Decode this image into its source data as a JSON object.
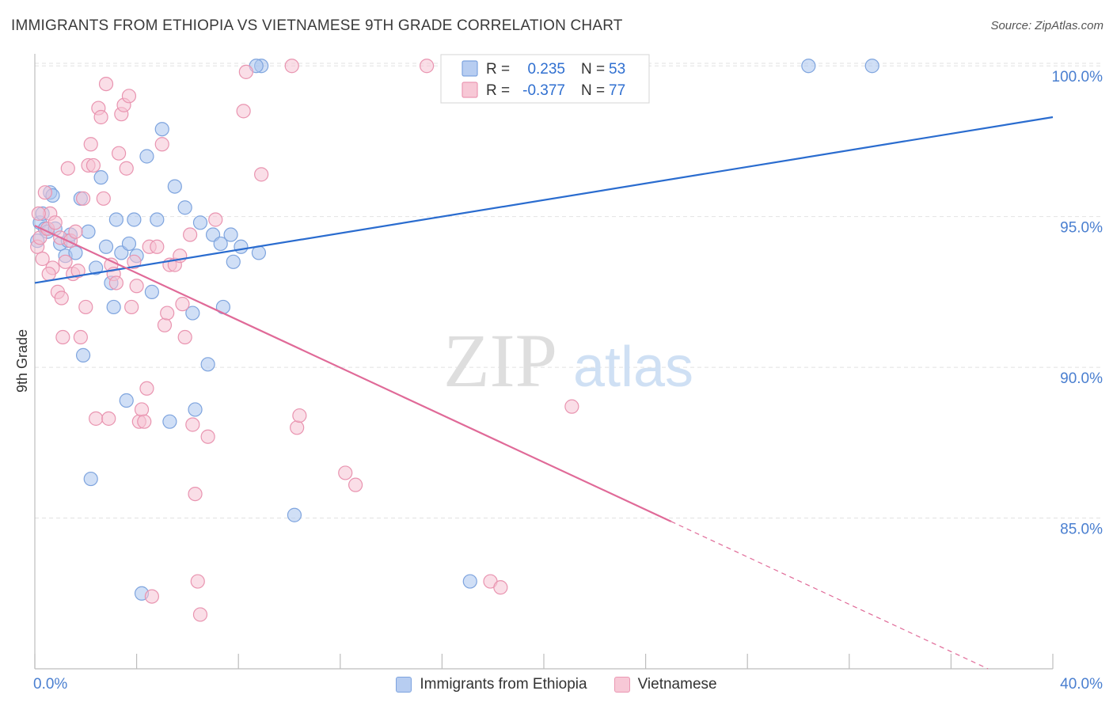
{
  "header": {
    "title": "IMMIGRANTS FROM ETHIOPIA VS VIETNAMESE 9TH GRADE CORRELATION CHART",
    "source": "Source: ZipAtlas.com"
  },
  "watermark": {
    "zip": "ZIP",
    "atlas": "atlas"
  },
  "colors": {
    "blue_fill": "#aac5ee",
    "blue_stroke": "#7ea4de",
    "blue_line": "#2a6ccf",
    "pink_fill": "#f6c3d3",
    "pink_stroke": "#e994b0",
    "pink_line": "#e06a98",
    "grid": "#e2e2e2",
    "axis_text": "#4a7fd0"
  },
  "chart_data": {
    "type": "scatter",
    "title": "IMMIGRANTS FROM ETHIOPIA VS VIETNAMESE 9TH GRADE CORRELATION CHART",
    "xlabel": "",
    "ylabel": "9th Grade",
    "xlim": [
      0,
      40
    ],
    "ylim": [
      80,
      100.4
    ],
    "x_tick_labels": [
      "0.0%",
      "40.0%"
    ],
    "y_ticks": [
      85,
      90,
      95,
      100
    ],
    "y_tick_labels": [
      "85.0%",
      "90.0%",
      "95.0%",
      "100.0%"
    ],
    "grid": true,
    "legend": [
      {
        "r_label": "R =",
        "r_value": "0.235",
        "n_label": "N =",
        "n_value": "53"
      },
      {
        "r_label": "R =",
        "r_value": "-0.377",
        "n_label": "N =",
        "n_value": "77"
      }
    ],
    "series": [
      {
        "name": "Immigrants from Ethiopia",
        "R": 0.235,
        "N": 53,
        "trend": {
          "x0": 0,
          "y0": 92.8,
          "x1": 40,
          "y1": 98.3,
          "dashed_from": null
        },
        "points": [
          [
            0.1,
            94.2
          ],
          [
            0.2,
            94.8
          ],
          [
            0.3,
            95.1
          ],
          [
            0.4,
            94.6
          ],
          [
            0.5,
            94.5
          ],
          [
            0.6,
            95.8
          ],
          [
            0.7,
            95.7
          ],
          [
            0.8,
            94.6
          ],
          [
            1.0,
            94.1
          ],
          [
            1.2,
            93.7
          ],
          [
            1.3,
            94.2
          ],
          [
            1.4,
            94.4
          ],
          [
            1.6,
            93.8
          ],
          [
            1.8,
            95.6
          ],
          [
            1.9,
            90.4
          ],
          [
            2.1,
            94.5
          ],
          [
            2.2,
            86.3
          ],
          [
            2.4,
            93.3
          ],
          [
            2.6,
            96.3
          ],
          [
            2.8,
            94.0
          ],
          [
            3.0,
            92.8
          ],
          [
            3.1,
            92.0
          ],
          [
            3.2,
            94.9
          ],
          [
            3.4,
            93.8
          ],
          [
            3.6,
            88.9
          ],
          [
            3.7,
            94.1
          ],
          [
            3.9,
            94.9
          ],
          [
            4.0,
            93.7
          ],
          [
            4.2,
            82.5
          ],
          [
            4.4,
            97.0
          ],
          [
            4.6,
            92.5
          ],
          [
            4.8,
            94.9
          ],
          [
            5.0,
            97.9
          ],
          [
            5.3,
            88.2
          ],
          [
            5.5,
            96.0
          ],
          [
            5.9,
            95.3
          ],
          [
            6.2,
            91.8
          ],
          [
            6.3,
            88.6
          ],
          [
            6.5,
            94.8
          ],
          [
            6.8,
            90.1
          ],
          [
            7.0,
            94.4
          ],
          [
            7.3,
            94.1
          ],
          [
            7.4,
            92.0
          ],
          [
            7.7,
            94.4
          ],
          [
            7.8,
            93.5
          ],
          [
            8.1,
            94.0
          ],
          [
            8.9,
            100.0
          ],
          [
            8.7,
            100.0
          ],
          [
            8.8,
            93.8
          ],
          [
            10.2,
            85.1
          ],
          [
            17.1,
            82.9
          ],
          [
            30.4,
            100.0
          ],
          [
            32.9,
            100.0
          ]
        ]
      },
      {
        "name": "Vietnamese",
        "R": -0.377,
        "N": 77,
        "trend": {
          "x0": 0,
          "y0": 94.7,
          "x1": 40,
          "y1": 79.0,
          "dashed_from": 25.0
        },
        "points": [
          [
            0.1,
            94.0
          ],
          [
            0.2,
            94.3
          ],
          [
            0.3,
            93.6
          ],
          [
            0.4,
            95.8
          ],
          [
            0.5,
            94.6
          ],
          [
            0.6,
            95.1
          ],
          [
            0.7,
            93.3
          ],
          [
            0.8,
            94.8
          ],
          [
            0.9,
            92.5
          ],
          [
            1.0,
            94.3
          ],
          [
            1.1,
            91.0
          ],
          [
            1.2,
            93.5
          ],
          [
            1.3,
            96.6
          ],
          [
            1.4,
            94.2
          ],
          [
            1.5,
            93.1
          ],
          [
            1.6,
            94.5
          ],
          [
            1.7,
            93.2
          ],
          [
            1.8,
            91.0
          ],
          [
            1.9,
            95.6
          ],
          [
            2.0,
            92.0
          ],
          [
            2.1,
            96.7
          ],
          [
            2.2,
            97.4
          ],
          [
            2.3,
            96.7
          ],
          [
            2.4,
            88.3
          ],
          [
            2.5,
            98.6
          ],
          [
            2.6,
            98.3
          ],
          [
            2.7,
            95.6
          ],
          [
            2.8,
            99.4
          ],
          [
            2.9,
            88.3
          ],
          [
            3.0,
            93.4
          ],
          [
            3.1,
            93.1
          ],
          [
            3.2,
            92.8
          ],
          [
            3.3,
            97.1
          ],
          [
            3.4,
            98.4
          ],
          [
            3.5,
            98.7
          ],
          [
            3.6,
            96.6
          ],
          [
            3.7,
            99.0
          ],
          [
            3.8,
            92.0
          ],
          [
            3.9,
            93.5
          ],
          [
            4.0,
            92.7
          ],
          [
            4.1,
            88.2
          ],
          [
            4.2,
            88.6
          ],
          [
            4.3,
            88.2
          ],
          [
            4.4,
            89.3
          ],
          [
            4.5,
            94.0
          ],
          [
            4.6,
            82.4
          ],
          [
            4.8,
            94.0
          ],
          [
            5.0,
            97.4
          ],
          [
            5.1,
            91.4
          ],
          [
            5.2,
            91.8
          ],
          [
            5.3,
            93.4
          ],
          [
            5.5,
            93.4
          ],
          [
            5.7,
            93.7
          ],
          [
            5.8,
            92.1
          ],
          [
            5.9,
            91.0
          ],
          [
            6.1,
            94.4
          ],
          [
            6.2,
            88.1
          ],
          [
            6.3,
            85.8
          ],
          [
            6.4,
            82.9
          ],
          [
            6.5,
            81.8
          ],
          [
            6.8,
            87.7
          ],
          [
            7.1,
            94.9
          ],
          [
            8.2,
            98.5
          ],
          [
            8.3,
            99.8
          ],
          [
            8.9,
            96.4
          ],
          [
            10.1,
            100.0
          ],
          [
            10.3,
            88.0
          ],
          [
            10.4,
            88.4
          ],
          [
            12.2,
            86.5
          ],
          [
            12.6,
            86.1
          ],
          [
            15.4,
            100.0
          ],
          [
            17.9,
            82.9
          ],
          [
            18.3,
            82.7
          ],
          [
            21.1,
            88.7
          ],
          [
            0.15,
            95.1
          ],
          [
            0.55,
            93.1
          ],
          [
            1.05,
            92.3
          ]
        ]
      }
    ]
  },
  "bottom_legend": {
    "items": [
      {
        "label": "Immigrants from Ethiopia"
      },
      {
        "label": "Vietnamese"
      }
    ]
  }
}
